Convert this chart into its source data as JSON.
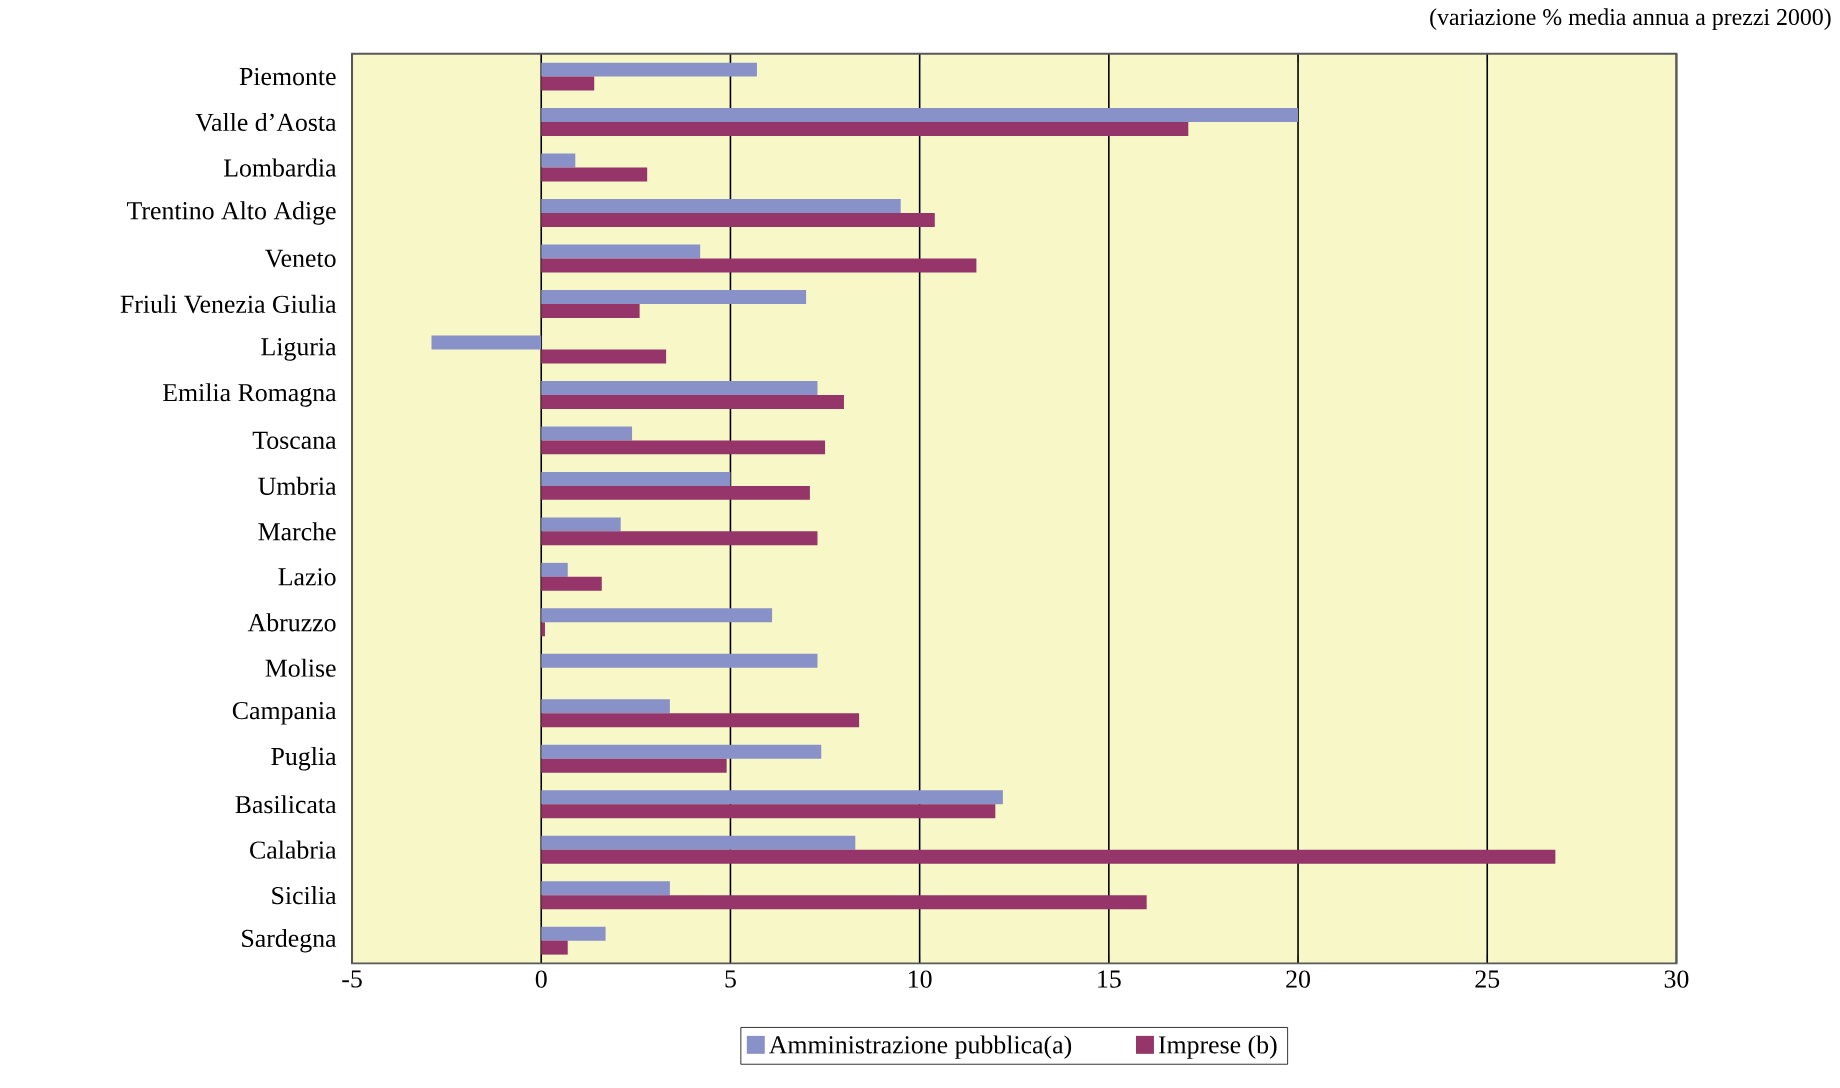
{
  "chart_data": {
    "type": "bar",
    "orientation": "horizontal",
    "subtitle": "(variazione % media annua a prezzi 2000)",
    "categories": [
      "Piemonte",
      "Valle d’Aosta",
      "Lombardia",
      "Trentino Alto Adige",
      "Veneto",
      "Friuli Venezia Giulia",
      "Liguria",
      "Emilia Romagna",
      "Toscana",
      "Umbria",
      "Marche",
      "Lazio",
      "Abruzzo",
      "Molise",
      "Campania",
      "Puglia",
      "Basilicata",
      "Calabria",
      "Sicilia",
      "Sardegna"
    ],
    "series": [
      {
        "name": "Amministrazione pubblica(a)",
        "color": "#8891c8",
        "values": [
          5.7,
          20.0,
          0.9,
          9.5,
          4.2,
          7.0,
          -2.9,
          7.3,
          2.4,
          5.0,
          2.1,
          0.7,
          6.1,
          7.3,
          3.4,
          7.4,
          12.2,
          8.3,
          3.4,
          1.7
        ]
      },
      {
        "name": "Imprese (b)",
        "color": "#95356a",
        "values": [
          1.4,
          17.1,
          2.8,
          10.4,
          11.5,
          2.6,
          3.3,
          8.0,
          7.5,
          7.1,
          7.3,
          1.6,
          0.1,
          null,
          8.4,
          4.9,
          12.0,
          26.8,
          16.0,
          0.7
        ]
      }
    ],
    "xlim": [
      -5,
      30
    ],
    "xticks": [
      -5,
      0,
      5,
      10,
      15,
      20,
      25,
      30
    ],
    "grid": "x",
    "legend": "bottom"
  }
}
